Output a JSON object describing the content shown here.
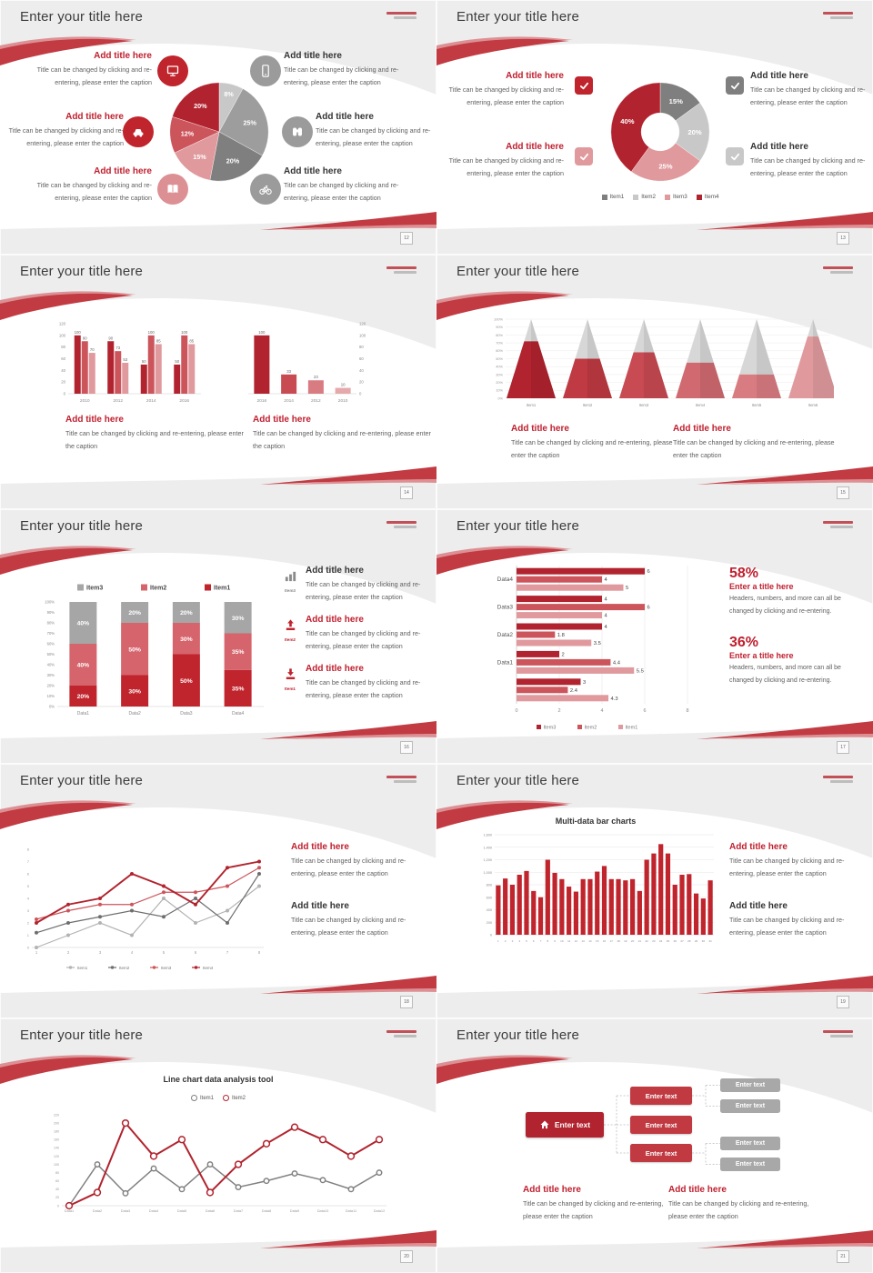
{
  "chrome": {
    "slide_title": "Enter your title here",
    "pages": [
      "12",
      "13",
      "14",
      "15",
      "16",
      "17",
      "18",
      "19",
      "20",
      "21"
    ]
  },
  "common": {
    "add_title": "Add title here",
    "caption": "Title can be changed by clicking and re-entering, please enter the caption",
    "enter_title": "Enter a title here",
    "stat_caption": "Headers, numbers, and more can all be changed by clicking and re-entering."
  },
  "callouts": [
    "58%",
    "36%"
  ],
  "side_items": [
    "Item3",
    "Item2",
    "Item1"
  ],
  "chart_data": [
    {
      "slide": "12",
      "type": "pie",
      "start": "top",
      "direction": "clockwise",
      "slices": [
        {
          "label": "8%",
          "value": 8,
          "color": "#c8c8c8"
        },
        {
          "label": "25%",
          "value": 25,
          "color": "#9d9d9d"
        },
        {
          "label": "20%",
          "value": 20,
          "color": "#7f7f7f"
        },
        {
          "label": "15%",
          "value": 15,
          "color": "#e0999d"
        },
        {
          "label": "12%",
          "value": 12,
          "color": "#cc555c"
        },
        {
          "label": "20%",
          "value": 20,
          "color": "#b1232e"
        }
      ]
    },
    {
      "slide": "13",
      "type": "donut",
      "slices": [
        {
          "label": "15%",
          "value": 15,
          "color": "#7f7f7f"
        },
        {
          "label": "20%",
          "value": 20,
          "color": "#c8c8c8"
        },
        {
          "label": "25%",
          "value": 25,
          "color": "#e0999d"
        },
        {
          "label": "40%",
          "value": 40,
          "color": "#b1232e"
        }
      ],
      "legend": [
        {
          "label": "Item1",
          "color": "#7f7f7f"
        },
        {
          "label": "Item2",
          "color": "#c8c8c8"
        },
        {
          "label": "Item3",
          "color": "#e0999d"
        },
        {
          "label": "Item4",
          "color": "#b1232e"
        }
      ]
    },
    {
      "slide": "14",
      "type": "bar",
      "categories": [
        "2010",
        "2012",
        "2014",
        "2016"
      ],
      "series": [
        {
          "name": "Series1",
          "color": "#b1232e",
          "values": [
            100,
            90,
            50,
            50
          ]
        },
        {
          "name": "Series2",
          "color": "#cc555c",
          "values": [
            90,
            73,
            100,
            100
          ]
        },
        {
          "name": "Series3",
          "color": "#e0999d",
          "values": [
            70,
            53,
            85,
            85
          ]
        }
      ],
      "ylim": [
        0,
        120
      ],
      "ytick": 20
    },
    {
      "slide": "14",
      "type": "bar",
      "categories": [
        "2016",
        "2014",
        "2012",
        "2010"
      ],
      "values": [
        100,
        33,
        23,
        10
      ],
      "bar_colors": [
        "#b1232e",
        "#c84a52",
        "#d97c82",
        "#e5a9ac"
      ],
      "ylim": [
        0,
        120
      ],
      "ytick": 20,
      "axis_side": "right"
    },
    {
      "slide": "15",
      "type": "cone",
      "categories": [
        "Item1",
        "Item2",
        "Item3",
        "Item4",
        "Item5",
        "Item6"
      ],
      "values": [
        72,
        50,
        58,
        45,
        30,
        78
      ],
      "colors": [
        "#b1232e",
        "#bf3a42",
        "#c84a52",
        "#d06a70",
        "#d97c82",
        "#e09a9e"
      ],
      "ylim": [
        0,
        100
      ],
      "ytick": 10
    },
    {
      "slide": "16",
      "type": "stacked_bar",
      "categories": [
        "Data1",
        "Data2",
        "Data3",
        "Data4"
      ],
      "series": [
        {
          "name": "Item1",
          "color": "#c0242c",
          "values": [
            20,
            30,
            50,
            35
          ]
        },
        {
          "name": "Item2",
          "color": "#d6646c",
          "values": [
            40,
            50,
            30,
            35
          ]
        },
        {
          "name": "Item3",
          "color": "#a6a6a6",
          "values": [
            40,
            20,
            20,
            30
          ]
        }
      ],
      "legend_order": [
        "Item3",
        "Item2",
        "Item1"
      ],
      "ylim": [
        0,
        100
      ],
      "ytick": 10
    },
    {
      "slide": "17",
      "type": "hbar",
      "groups": [
        "Data4",
        "Data3",
        "Data2",
        "Data1",
        ""
      ],
      "series": [
        {
          "name": "Item3",
          "color": "#b1232e",
          "values": [
            6,
            4,
            4,
            2,
            3
          ]
        },
        {
          "name": "Item2",
          "color": "#cc555c",
          "values": [
            4,
            6,
            1.8,
            4.4,
            2.4
          ]
        },
        {
          "name": "Item1",
          "color": "#e0999d",
          "values": [
            5,
            4,
            3.5,
            5.5,
            4.3
          ]
        }
      ],
      "xlim": [
        0,
        8
      ],
      "xticks": [
        0,
        2,
        4,
        6,
        8
      ]
    },
    {
      "slide": "18",
      "type": "line",
      "x": [
        1,
        2,
        3,
        4,
        5,
        6,
        7,
        8
      ],
      "series": [
        {
          "name": "Item1",
          "color": "#b3b3b3",
          "values": [
            0,
            1,
            2,
            1,
            4,
            2,
            3,
            5
          ]
        },
        {
          "name": "Item2",
          "color": "#6e6e6e",
          "values": [
            1.2,
            2,
            2.5,
            3,
            2.5,
            4,
            2,
            6
          ]
        },
        {
          "name": "Item3",
          "color": "#cc555c",
          "values": [
            2.3,
            3,
            3.5,
            3.5,
            4.5,
            4.5,
            5,
            6.5
          ]
        },
        {
          "name": "Item4",
          "color": "#b1232e",
          "values": [
            2,
            3.5,
            4,
            6,
            5,
            3.5,
            6.5,
            7
          ]
        }
      ],
      "ylim": [
        0,
        8
      ],
      "ytick": 1
    },
    {
      "slide": "19",
      "type": "bar",
      "title": "Multi-data bar charts",
      "categories": [
        "1",
        "2",
        "3",
        "4",
        "5",
        "6",
        "7",
        "8",
        "9",
        "10",
        "11",
        "12",
        "13",
        "14",
        "15",
        "16",
        "17",
        "18",
        "19",
        "20",
        "21",
        "22",
        "23",
        "24",
        "25",
        "26",
        "27",
        "28",
        "29",
        "30",
        "31"
      ],
      "values": [
        790,
        900,
        800,
        960,
        1020,
        700,
        600,
        1200,
        990,
        890,
        770,
        690,
        890,
        890,
        1010,
        1100,
        890,
        890,
        870,
        890,
        700,
        1200,
        1300,
        1450,
        1300,
        800,
        960,
        970,
        660,
        580,
        870
      ],
      "color": "#c0242c",
      "ylim": [
        0,
        1600
      ],
      "ytick": 200
    },
    {
      "slide": "20",
      "type": "line",
      "title": "Line chart data analysis tool",
      "categories": [
        "Data1",
        "Data2",
        "Data3",
        "Data4",
        "Data5",
        "Data6",
        "Data7",
        "Data8",
        "Data9",
        "Data10",
        "Data11",
        "Data12"
      ],
      "series": [
        {
          "name": "Item1",
          "color": "#808080",
          "values": [
            0,
            100,
            30,
            90,
            40,
            100,
            45,
            60,
            78,
            62,
            40,
            80
          ]
        },
        {
          "name": "Item2",
          "color": "#b1232e",
          "values": [
            0,
            32,
            200,
            120,
            160,
            32,
            100,
            150,
            190,
            160,
            120,
            160
          ]
        }
      ],
      "ylim": [
        0,
        220
      ],
      "ytick": 20,
      "marker": "open-circle"
    },
    {
      "slide": "21",
      "type": "flow",
      "root": "Enter text",
      "children": [
        "Enter text",
        "Enter text",
        "Enter text"
      ],
      "leaves": [
        "Enter text",
        "Enter text",
        "Enter text",
        "Enter text"
      ]
    }
  ]
}
